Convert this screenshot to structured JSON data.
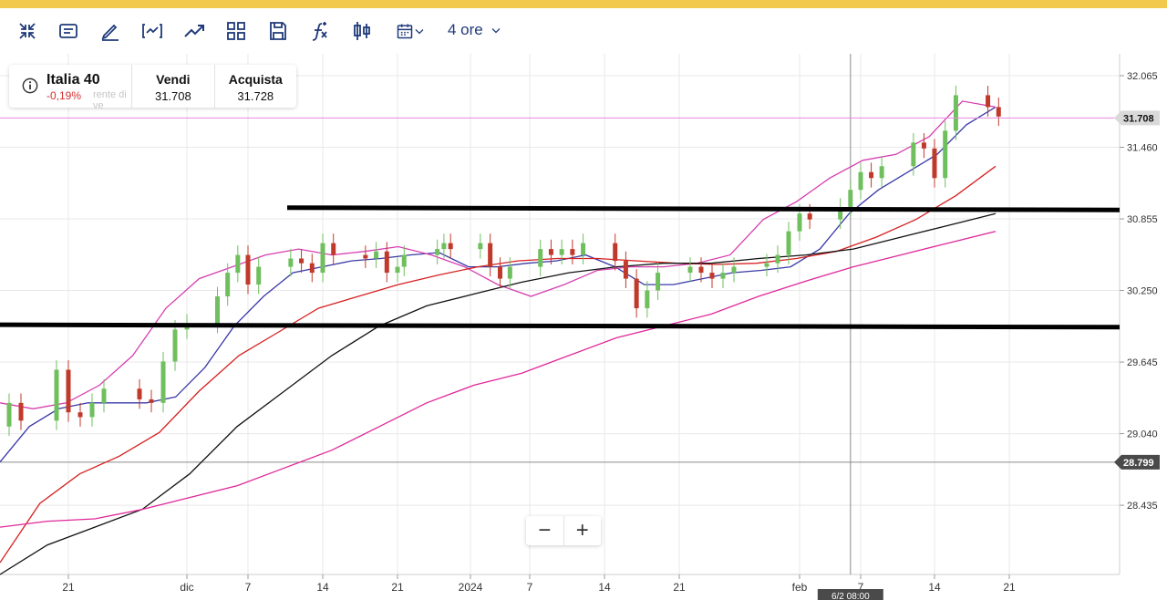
{
  "toolbar": {
    "icons": [
      "collapse-icon",
      "text-icon",
      "pencil-icon",
      "indicator-icon",
      "trend-icon",
      "layout-icon",
      "save-icon",
      "function-icon",
      "candle-type-icon",
      "calendar-icon"
    ],
    "period_label": "4 ore"
  },
  "instrument": {
    "name": "Italia 40",
    "change": "-0,19%",
    "ghost_text": "rente di ve",
    "sell_label": "Vendi",
    "sell_value": "31.708",
    "buy_label": "Acquista",
    "buy_value": "31.728"
  },
  "zoom": {
    "minus": "−",
    "plus": "+"
  },
  "colors": {
    "accent": "#1f3a7a",
    "bar": "#f2c94c",
    "up": "#6fbf5e",
    "down": "#c0392b",
    "ma_blue": "#3a3aa8",
    "ma_magenta_fast": "#d63fb0",
    "ma_red": "#d62020",
    "ma_black": "#111111",
    "ma_magenta_slow": "#e0289a",
    "price_line": "#e58ae0"
  },
  "chart_data": {
    "type": "line",
    "title": "",
    "xlabel": "",
    "ylabel": "",
    "ylim": [
      27.85,
      32.25
    ],
    "y_ticks": [
      "32.065",
      "31.460",
      "30.855",
      "30.250",
      "29.645",
      "29.040",
      "28.435"
    ],
    "x_ticks": [
      "21",
      "dic",
      "7",
      "14",
      "21",
      "2024",
      "7",
      "14",
      "21",
      "feb",
      "7",
      "14",
      "21"
    ],
    "price_tags": [
      {
        "value": "31.708",
        "style": "current"
      },
      {
        "value": "28.799",
        "style": "crosshair"
      }
    ],
    "crosshair_date": "6/2 08:00",
    "horizontal_lines": [
      {
        "y_start": 30.95,
        "y_end": 30.93
      },
      {
        "y_start": 29.96,
        "y_end": 29.94
      }
    ],
    "price_series": [
      [
        "2023-11-15",
        29.1
      ],
      [
        "2023-11-16",
        29.3
      ],
      [
        "2023-11-17",
        29.15
      ],
      [
        "2023-11-20",
        29.58
      ],
      [
        "2023-11-21",
        29.22
      ],
      [
        "2023-11-22",
        29.18
      ],
      [
        "2023-11-23",
        29.3
      ],
      [
        "2023-11-24",
        29.42
      ],
      [
        "2023-11-27",
        29.33
      ],
      [
        "2023-11-28",
        29.3
      ],
      [
        "2023-11-29",
        29.65
      ],
      [
        "2023-11-30",
        29.92
      ],
      [
        "2023-12-01",
        29.97
      ],
      [
        "2023-12-04",
        30.2
      ],
      [
        "2023-12-05",
        30.4
      ],
      [
        "2023-12-06",
        30.55
      ],
      [
        "2023-12-07",
        30.3
      ],
      [
        "2023-12-08",
        30.45
      ],
      [
        "2023-12-11",
        30.52
      ],
      [
        "2023-12-12",
        30.48
      ],
      [
        "2023-12-13",
        30.4
      ],
      [
        "2023-12-14",
        30.65
      ],
      [
        "2023-12-15",
        30.55
      ],
      [
        "2023-12-18",
        30.52
      ],
      [
        "2023-12-19",
        30.58
      ],
      [
        "2023-12-20",
        30.4
      ],
      [
        "2023-12-21",
        30.45
      ],
      [
        "2023-12-22",
        30.55
      ],
      [
        "2023-12-27",
        30.6
      ],
      [
        "2023-12-28",
        30.65
      ],
      [
        "2023-12-29",
        30.6
      ],
      [
        "2024-01-02",
        30.65
      ],
      [
        "2024-01-03",
        30.45
      ],
      [
        "2024-01-04",
        30.35
      ],
      [
        "2024-01-05",
        30.45
      ],
      [
        "2024-01-08",
        30.6
      ],
      [
        "2024-01-09",
        30.55
      ],
      [
        "2024-01-10",
        30.6
      ],
      [
        "2024-01-11",
        30.55
      ],
      [
        "2024-01-12",
        30.65
      ],
      [
        "2024-01-15",
        30.5
      ],
      [
        "2024-01-16",
        30.35
      ],
      [
        "2024-01-17",
        30.1
      ],
      [
        "2024-01-18",
        30.25
      ],
      [
        "2024-01-19",
        30.4
      ],
      [
        "2024-01-22",
        30.45
      ],
      [
        "2024-01-23",
        30.4
      ],
      [
        "2024-01-24",
        30.35
      ],
      [
        "2024-01-25",
        30.4
      ],
      [
        "2024-01-26",
        30.45
      ],
      [
        "2024-01-29",
        30.48
      ],
      [
        "2024-01-30",
        30.55
      ],
      [
        "2024-01-31",
        30.75
      ],
      [
        "2024-02-01",
        30.9
      ],
      [
        "2024-02-02",
        30.85
      ],
      [
        "2024-02-05",
        30.95
      ],
      [
        "2024-02-06",
        31.1
      ],
      [
        "2024-02-07",
        31.25
      ],
      [
        "2024-02-08",
        31.2
      ],
      [
        "2024-02-09",
        31.3
      ],
      [
        "2024-02-12",
        31.5
      ],
      [
        "2024-02-13",
        31.45
      ],
      [
        "2024-02-14",
        31.2
      ],
      [
        "2024-02-15",
        31.6
      ],
      [
        "2024-02-16",
        31.9
      ],
      [
        "2024-02-19",
        31.8
      ],
      [
        "2024-02-20",
        31.72
      ]
    ],
    "series": [
      {
        "color": "#3a3aa8",
        "values": [
          28.8,
          29.1,
          29.25,
          29.3,
          29.3,
          29.3,
          29.35,
          29.6,
          29.95,
          30.2,
          30.4,
          30.45,
          30.5,
          30.52,
          30.55,
          30.57,
          30.45,
          30.45,
          30.48,
          30.5,
          30.55,
          30.45,
          30.3,
          30.3,
          30.35,
          30.4,
          30.42,
          30.45,
          30.6,
          30.9,
          31.1,
          31.25,
          31.4,
          31.65,
          31.8
        ]
      },
      {
        "color": "#d63fb0",
        "values": [
          29.3,
          29.25,
          29.3,
          29.45,
          29.7,
          30.1,
          30.35,
          30.45,
          30.55,
          30.6,
          30.55,
          30.58,
          30.62,
          30.55,
          30.45,
          30.3,
          30.2,
          30.3,
          30.42,
          30.45,
          30.45,
          30.48,
          30.55,
          30.85,
          31.0,
          31.2,
          31.35,
          31.4,
          31.55,
          31.85,
          31.8
        ]
      },
      {
        "color": "#d62020",
        "values": [
          27.95,
          28.45,
          28.7,
          28.85,
          29.05,
          29.4,
          29.7,
          29.9,
          30.1,
          30.2,
          30.3,
          30.38,
          30.45,
          30.5,
          30.52,
          30.52,
          30.5,
          30.48,
          30.47,
          30.48,
          30.52,
          30.58,
          30.7,
          30.85,
          31.05,
          31.3
        ]
      },
      {
        "color": "#111111",
        "values": [
          27.85,
          28.1,
          28.25,
          28.4,
          28.7,
          29.1,
          29.4,
          29.7,
          29.95,
          30.12,
          30.22,
          30.32,
          30.4,
          30.45,
          30.48,
          30.48,
          30.52,
          30.55,
          30.6,
          30.7,
          30.8,
          30.9
        ]
      },
      {
        "color": "#e0289a",
        "values": [
          28.25,
          28.3,
          28.32,
          28.4,
          28.5,
          28.6,
          28.75,
          28.9,
          29.1,
          29.3,
          29.45,
          29.55,
          29.7,
          29.85,
          29.95,
          30.05,
          30.2,
          30.33,
          30.45,
          30.55,
          30.65,
          30.75
        ]
      }
    ]
  }
}
